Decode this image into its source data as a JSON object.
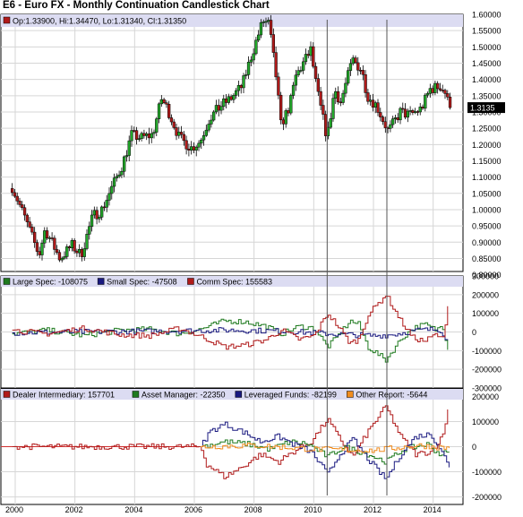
{
  "title": "E6 - Euro FX - Monthly Continuation Candlestick Chart",
  "colors": {
    "up": "#22a82a",
    "down": "#b01a1a",
    "grid": "#d6d6d6",
    "legend_bg": "#dcdcf2",
    "panel_border": "#000000",
    "price_box_bg": "#000000",
    "price_box_text": "#ffffff",
    "vline": "#555555"
  },
  "chart_data": [
    {
      "type": "candlestick",
      "legend": "Op:1.33900, Hi:1.34470, Lo:1.31340, Cl:1.31350",
      "legend_icon_color": "#b01a1a",
      "last_price_label": "1.3135",
      "ylim": [
        0.81,
        1.6
      ],
      "yticks": [
        "1.60000",
        "1.55000",
        "1.50000",
        "1.45000",
        "1.40000",
        "1.35000",
        "1.30000",
        "1.25000",
        "1.20000",
        "1.15000",
        "1.10000",
        "1.05000",
        "1.00000",
        "0.95000",
        "0.90000",
        "0.85000",
        "0.80000"
      ],
      "ytick_values": [
        1.6,
        1.55,
        1.5,
        1.45,
        1.4,
        1.35,
        1.3,
        1.25,
        1.2,
        1.15,
        1.1,
        1.05,
        1.0,
        0.95,
        0.9,
        0.85,
        0.8
      ],
      "xlim": [
        1999.7,
        2015.0
      ],
      "xticks": [
        "2000",
        "2002",
        "2004",
        "2006",
        "2008",
        "2010",
        "2012",
        "2014"
      ],
      "xtick_values": [
        2000,
        2002,
        2004,
        2006,
        2008,
        2010,
        2012,
        2014
      ],
      "grid": true,
      "monthly_close_keypoints": [
        [
          1999.9,
          1.07
        ],
        [
          2000.3,
          0.98
        ],
        [
          2000.8,
          0.86
        ],
        [
          2001.0,
          0.94
        ],
        [
          2001.5,
          0.85
        ],
        [
          2001.9,
          0.89
        ],
        [
          2002.2,
          0.86
        ],
        [
          2002.6,
          0.98
        ],
        [
          2002.9,
          1.0
        ],
        [
          2003.3,
          1.08
        ],
        [
          2003.6,
          1.14
        ],
        [
          2003.9,
          1.23
        ],
        [
          2004.2,
          1.22
        ],
        [
          2004.6,
          1.23
        ],
        [
          2004.9,
          1.34
        ],
        [
          2005.1,
          1.31
        ],
        [
          2005.5,
          1.22
        ],
        [
          2005.9,
          1.19
        ],
        [
          2006.2,
          1.21
        ],
        [
          2006.5,
          1.28
        ],
        [
          2006.9,
          1.32
        ],
        [
          2007.2,
          1.34
        ],
        [
          2007.6,
          1.38
        ],
        [
          2007.9,
          1.47
        ],
        [
          2008.3,
          1.58
        ],
        [
          2008.5,
          1.57
        ],
        [
          2008.75,
          1.4
        ],
        [
          2008.9,
          1.26
        ],
        [
          2009.2,
          1.32
        ],
        [
          2009.4,
          1.41
        ],
        [
          2009.9,
          1.49
        ],
        [
          2010.1,
          1.37
        ],
        [
          2010.45,
          1.22
        ],
        [
          2010.7,
          1.37
        ],
        [
          2010.9,
          1.33
        ],
        [
          2011.3,
          1.46
        ],
        [
          2011.6,
          1.43
        ],
        [
          2011.8,
          1.35
        ],
        [
          2012.1,
          1.32
        ],
        [
          2012.5,
          1.24
        ],
        [
          2012.9,
          1.3
        ],
        [
          2013.2,
          1.29
        ],
        [
          2013.6,
          1.31
        ],
        [
          2013.9,
          1.37
        ],
        [
          2014.25,
          1.38
        ],
        [
          2014.4,
          1.36
        ],
        [
          2014.55,
          1.3135
        ]
      ]
    },
    {
      "type": "step-line",
      "legend_entries": [
        {
          "label": "Large Spec: -108075",
          "color": "#1f7a1f"
        },
        {
          "label": "Small Spec: -47508",
          "color": "#1a1a80"
        },
        {
          "label": "Comm Spec: 155583",
          "color": "#b01a1a"
        }
      ],
      "ylim": [
        -300000,
        300000
      ],
      "yticks": [
        "300000",
        "200000",
        "100000",
        "0",
        "-100000",
        "-200000",
        "-300000"
      ],
      "ytick_values": [
        300000,
        200000,
        100000,
        0,
        -100000,
        -200000,
        -300000
      ],
      "series": [
        {
          "name": "Large Spec",
          "color": "#1f7a1f",
          "keypoints": [
            [
              1999.9,
              -10000
            ],
            [
              2001.0,
              10000
            ],
            [
              2002.3,
              -20000
            ],
            [
              2003.5,
              10000
            ],
            [
              2004.5,
              15000
            ],
            [
              2005.5,
              -10000
            ],
            [
              2006.3,
              20000
            ],
            [
              2007.0,
              60000
            ],
            [
              2007.7,
              55000
            ],
            [
              2008.4,
              30000
            ],
            [
              2008.9,
              -10000
            ],
            [
              2009.5,
              30000
            ],
            [
              2010.0,
              20000
            ],
            [
              2010.45,
              -80000
            ],
            [
              2010.8,
              -20000
            ],
            [
              2011.2,
              60000
            ],
            [
              2011.5,
              40000
            ],
            [
              2011.8,
              -80000
            ],
            [
              2012.4,
              -150000
            ],
            [
              2012.9,
              -40000
            ],
            [
              2013.3,
              20000
            ],
            [
              2013.7,
              40000
            ],
            [
              2014.1,
              10000
            ],
            [
              2014.3,
              40000
            ],
            [
              2014.5,
              -108075
            ]
          ]
        },
        {
          "name": "Small Spec",
          "color": "#1a1a80",
          "keypoints": [
            [
              1999.9,
              -5000
            ],
            [
              2002.0,
              0
            ],
            [
              2005.0,
              5000
            ],
            [
              2007.0,
              10000
            ],
            [
              2009.0,
              5000
            ],
            [
              2010.5,
              -10000
            ],
            [
              2012.0,
              -20000
            ],
            [
              2012.6,
              -15000
            ],
            [
              2013.5,
              10000
            ],
            [
              2014.2,
              15000
            ],
            [
              2014.5,
              -47508
            ]
          ]
        },
        {
          "name": "Comm Spec",
          "color": "#b01a1a",
          "keypoints": [
            [
              1999.9,
              10000
            ],
            [
              2001.0,
              -10000
            ],
            [
              2002.3,
              20000
            ],
            [
              2003.5,
              -15000
            ],
            [
              2004.5,
              -20000
            ],
            [
              2005.5,
              20000
            ],
            [
              2006.3,
              -30000
            ],
            [
              2007.0,
              -80000
            ],
            [
              2007.7,
              -70000
            ],
            [
              2008.4,
              -40000
            ],
            [
              2008.9,
              10000
            ],
            [
              2009.5,
              -40000
            ],
            [
              2010.0,
              -20000
            ],
            [
              2010.45,
              100000
            ],
            [
              2010.8,
              30000
            ],
            [
              2011.2,
              -60000
            ],
            [
              2011.5,
              -40000
            ],
            [
              2011.8,
              90000
            ],
            [
              2012.4,
              200000
            ],
            [
              2012.9,
              60000
            ],
            [
              2013.3,
              -30000
            ],
            [
              2013.7,
              -50000
            ],
            [
              2014.1,
              -10000
            ],
            [
              2014.3,
              -50000
            ],
            [
              2014.5,
              155583
            ]
          ]
        }
      ]
    },
    {
      "type": "step-line",
      "legend_entries": [
        {
          "label": "Dealer Intermediary: 157701",
          "color": "#b01a1a"
        },
        {
          "label": "Asset Manager: -22350",
          "color": "#1f7a1f"
        },
        {
          "label": "Leveraged Funds: -82199",
          "color": "#1a1a80"
        },
        {
          "label": "Other Report: -5644",
          "color": "#f08c1e"
        }
      ],
      "ylim": [
        -230000,
        230000
      ],
      "yticks": [
        "200000",
        "100000",
        "0",
        "-100000",
        "-200000"
      ],
      "ytick_values": [
        200000,
        100000,
        0,
        -100000,
        -200000
      ],
      "series": [
        {
          "name": "Dealer Intermediary",
          "color": "#b01a1a",
          "keypoints": [
            [
              1999.9,
              0
            ],
            [
              2006.2,
              0
            ],
            [
              2006.4,
              -70000
            ],
            [
              2007.0,
              -120000
            ],
            [
              2007.6,
              -80000
            ],
            [
              2008.2,
              -30000
            ],
            [
              2008.8,
              -60000
            ],
            [
              2009.3,
              -20000
            ],
            [
              2009.9,
              20000
            ],
            [
              2010.45,
              110000
            ],
            [
              2010.8,
              40000
            ],
            [
              2011.3,
              -40000
            ],
            [
              2011.8,
              60000
            ],
            [
              2012.4,
              160000
            ],
            [
              2012.9,
              40000
            ],
            [
              2013.4,
              -30000
            ],
            [
              2013.9,
              -20000
            ],
            [
              2014.3,
              40000
            ],
            [
              2014.5,
              157701
            ]
          ]
        },
        {
          "name": "Asset Manager",
          "color": "#1f7a1f",
          "keypoints": [
            [
              2006.2,
              0
            ],
            [
              2007.0,
              20000
            ],
            [
              2007.8,
              10000
            ],
            [
              2008.5,
              -10000
            ],
            [
              2009.2,
              20000
            ],
            [
              2009.8,
              10000
            ],
            [
              2010.45,
              -40000
            ],
            [
              2011.0,
              0
            ],
            [
              2011.8,
              -30000
            ],
            [
              2012.4,
              -60000
            ],
            [
              2013.0,
              -10000
            ],
            [
              2013.8,
              10000
            ],
            [
              2014.2,
              -30000
            ],
            [
              2014.5,
              -22350
            ]
          ]
        },
        {
          "name": "Leveraged Funds",
          "color": "#1a1a80",
          "keypoints": [
            [
              2006.2,
              0
            ],
            [
              2006.5,
              60000
            ],
            [
              2007.0,
              90000
            ],
            [
              2007.6,
              60000
            ],
            [
              2008.2,
              20000
            ],
            [
              2008.8,
              40000
            ],
            [
              2009.3,
              10000
            ],
            [
              2009.9,
              -20000
            ],
            [
              2010.45,
              -110000
            ],
            [
              2010.8,
              -40000
            ],
            [
              2011.3,
              30000
            ],
            [
              2011.8,
              -50000
            ],
            [
              2012.4,
              -130000
            ],
            [
              2012.9,
              -30000
            ],
            [
              2013.4,
              40000
            ],
            [
              2013.9,
              50000
            ],
            [
              2014.3,
              -20000
            ],
            [
              2014.5,
              -82199
            ]
          ]
        },
        {
          "name": "Other Report",
          "color": "#f08c1e",
          "keypoints": [
            [
              2006.2,
              0
            ],
            [
              2008.0,
              5000
            ],
            [
              2010.0,
              -10000
            ],
            [
              2012.0,
              -15000
            ],
            [
              2013.5,
              5000
            ],
            [
              2014.5,
              -5644
            ]
          ]
        }
      ]
    }
  ],
  "event_markers_x": [
    2010.45,
    2012.45
  ]
}
